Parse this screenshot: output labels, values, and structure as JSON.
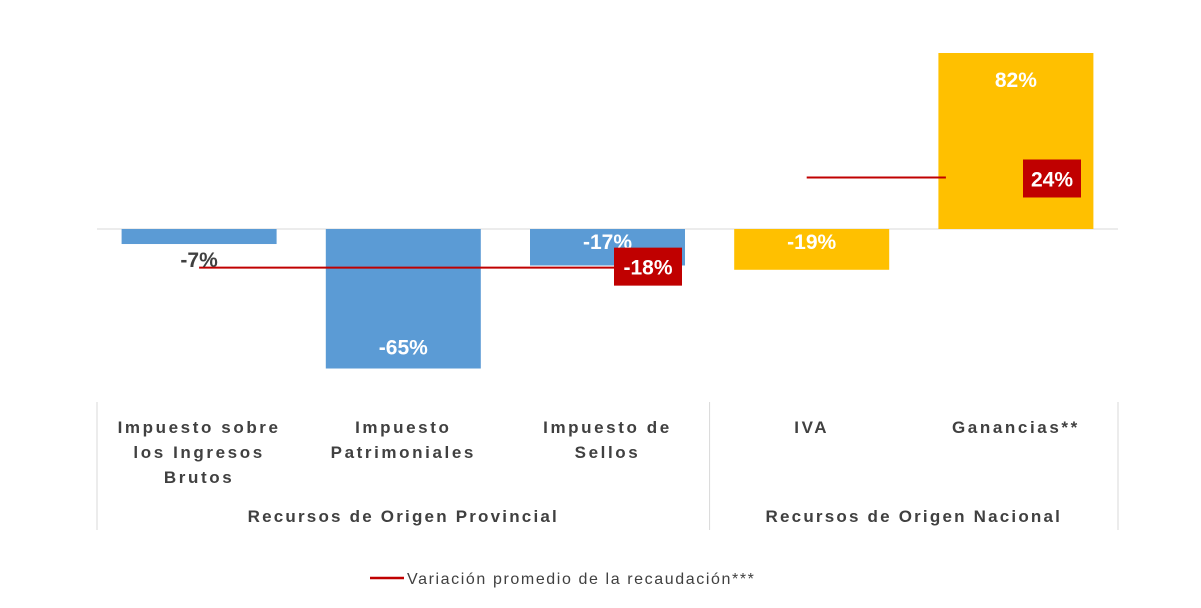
{
  "chart_data": {
    "type": "bar",
    "categories": [
      [
        "Impuesto sobre",
        "los Ingresos",
        "Brutos"
      ],
      [
        "Impuesto",
        "Patrimoniales"
      ],
      [
        "Impuesto de",
        "Sellos"
      ],
      [
        "IVA"
      ],
      [
        "Ganancias**"
      ]
    ],
    "values": [
      -7,
      -65,
      -17,
      -19,
      82
    ],
    "value_labels": [
      "-7%",
      "-65%",
      "-17%",
      "-19%",
      "82%"
    ],
    "bar_colors": [
      "#5B9BD5",
      "#5B9BD5",
      "#5B9BD5",
      "#FFC000",
      "#FFC000"
    ],
    "ylim": [
      -65,
      82
    ],
    "groups": [
      {
        "label": "Recursos de Origen Provincial",
        "start": 0,
        "end": 2,
        "average": -18,
        "average_label": "-18%"
      },
      {
        "label": "Recursos de Origen Nacional",
        "start": 3,
        "end": 4,
        "average": 24,
        "average_label": "24%"
      }
    ],
    "average_color": "#C00000",
    "legend": {
      "label": "Variación promedio de la recaudación***",
      "position": "bottom"
    },
    "grid": false
  }
}
